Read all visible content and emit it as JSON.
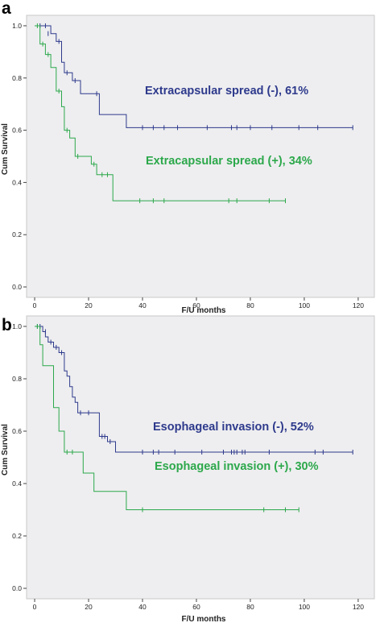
{
  "chart_data": [
    {
      "type": "line",
      "panel_label": "a",
      "xlabel": "F/U months",
      "ylabel": "Cum Survival",
      "xlim": [
        -3,
        126
      ],
      "ylim": [
        -0.04,
        1.04
      ],
      "xticks": [
        "0",
        "20",
        "40",
        "60",
        "80",
        "100",
        "120"
      ],
      "yticks": [
        "0.0",
        "0.2",
        "0.4",
        "0.6",
        "0.8",
        "1.0"
      ],
      "grid": false,
      "series": [
        {
          "name": "Extracapsular spread (-), 61%",
          "color": "#2e3a8c",
          "steps": [
            [
              0,
              1.0
            ],
            [
              6,
              0.97
            ],
            [
              8,
              0.94
            ],
            [
              10,
              0.86
            ],
            [
              11,
              0.82
            ],
            [
              14,
              0.79
            ],
            [
              17,
              0.74
            ],
            [
              24,
              0.66
            ],
            [
              34,
              0.61
            ],
            [
              118,
              0.61
            ]
          ],
          "censored": [
            [
              2,
              1.0
            ],
            [
              4,
              1.0
            ],
            [
              5,
              0.97
            ],
            [
              9,
              0.94
            ],
            [
              12,
              0.82
            ],
            [
              15,
              0.79
            ],
            [
              23,
              0.74
            ],
            [
              40,
              0.61
            ],
            [
              44,
              0.61
            ],
            [
              48,
              0.61
            ],
            [
              53,
              0.61
            ],
            [
              64,
              0.61
            ],
            [
              73,
              0.61
            ],
            [
              75,
              0.61
            ],
            [
              80,
              0.61
            ],
            [
              88,
              0.61
            ],
            [
              98,
              0.61
            ],
            [
              105,
              0.61
            ],
            [
              118,
              0.61
            ]
          ]
        },
        {
          "name": "Extracapsular spread (+), 34%",
          "color": "#2ca84b",
          "steps": [
            [
              0,
              1.0
            ],
            [
              2,
              0.93
            ],
            [
              4,
              0.89
            ],
            [
              6,
              0.84
            ],
            [
              8,
              0.75
            ],
            [
              10,
              0.69
            ],
            [
              11,
              0.6
            ],
            [
              13,
              0.57
            ],
            [
              15,
              0.5
            ],
            [
              21,
              0.47
            ],
            [
              23,
              0.43
            ],
            [
              29,
              0.33
            ],
            [
              93,
              0.33
            ]
          ],
          "censored": [
            [
              1,
              1.0
            ],
            [
              3,
              0.93
            ],
            [
              5,
              0.89
            ],
            [
              9,
              0.75
            ],
            [
              12,
              0.6
            ],
            [
              16,
              0.5
            ],
            [
              22,
              0.47
            ],
            [
              25,
              0.43
            ],
            [
              27,
              0.43
            ],
            [
              39,
              0.33
            ],
            [
              44,
              0.33
            ],
            [
              48,
              0.33
            ],
            [
              72,
              0.33
            ],
            [
              75,
              0.33
            ],
            [
              87,
              0.33
            ],
            [
              93,
              0.33
            ]
          ]
        }
      ]
    },
    {
      "type": "line",
      "panel_label": "b",
      "xlabel": "F/U months",
      "ylabel": "Cum Survival",
      "xlim": [
        -3,
        126
      ],
      "ylim": [
        -0.04,
        1.04
      ],
      "xticks": [
        "0",
        "20",
        "40",
        "60",
        "80",
        "100",
        "120"
      ],
      "yticks": [
        "0.0",
        "0.2",
        "0.4",
        "0.6",
        "0.8",
        "1.0"
      ],
      "grid": false,
      "series": [
        {
          "name": "Esophageal invasion (-), 52%",
          "color": "#2e3a8c",
          "steps": [
            [
              0,
              1.0
            ],
            [
              3,
              0.98
            ],
            [
              4,
              0.96
            ],
            [
              5,
              0.94
            ],
            [
              7,
              0.92
            ],
            [
              9,
              0.9
            ],
            [
              11,
              0.83
            ],
            [
              12,
              0.81
            ],
            [
              13,
              0.77
            ],
            [
              14,
              0.73
            ],
            [
              15,
              0.71
            ],
            [
              16,
              0.67
            ],
            [
              24,
              0.58
            ],
            [
              27,
              0.56
            ],
            [
              30,
              0.52
            ],
            [
              118,
              0.52
            ]
          ],
          "censored": [
            [
              1,
              1.0
            ],
            [
              2,
              1.0
            ],
            [
              4,
              0.98
            ],
            [
              6,
              0.94
            ],
            [
              8,
              0.92
            ],
            [
              10,
              0.9
            ],
            [
              17,
              0.67
            ],
            [
              20,
              0.67
            ],
            [
              25,
              0.58
            ],
            [
              26,
              0.58
            ],
            [
              28,
              0.56
            ],
            [
              40,
              0.52
            ],
            [
              44,
              0.52
            ],
            [
              46,
              0.52
            ],
            [
              52,
              0.52
            ],
            [
              62,
              0.52
            ],
            [
              70,
              0.52
            ],
            [
              73,
              0.52
            ],
            [
              74,
              0.52
            ],
            [
              75,
              0.52
            ],
            [
              77,
              0.52
            ],
            [
              78,
              0.52
            ],
            [
              87,
              0.52
            ],
            [
              104,
              0.52
            ],
            [
              107,
              0.52
            ],
            [
              118,
              0.52
            ]
          ]
        },
        {
          "name": "Esophageal invasion (+), 30%",
          "color": "#2ca84b",
          "steps": [
            [
              0,
              1.0
            ],
            [
              2,
              0.93
            ],
            [
              3,
              0.85
            ],
            [
              7,
              0.69
            ],
            [
              9,
              0.6
            ],
            [
              11,
              0.52
            ],
            [
              18,
              0.44
            ],
            [
              22,
              0.37
            ],
            [
              34,
              0.3
            ],
            [
              98,
              0.3
            ]
          ],
          "censored": [
            [
              1,
              1.0
            ],
            [
              12,
              0.52
            ],
            [
              14,
              0.52
            ],
            [
              40,
              0.3
            ],
            [
              85,
              0.3
            ],
            [
              93,
              0.3
            ],
            [
              98,
              0.3
            ]
          ]
        }
      ]
    }
  ]
}
